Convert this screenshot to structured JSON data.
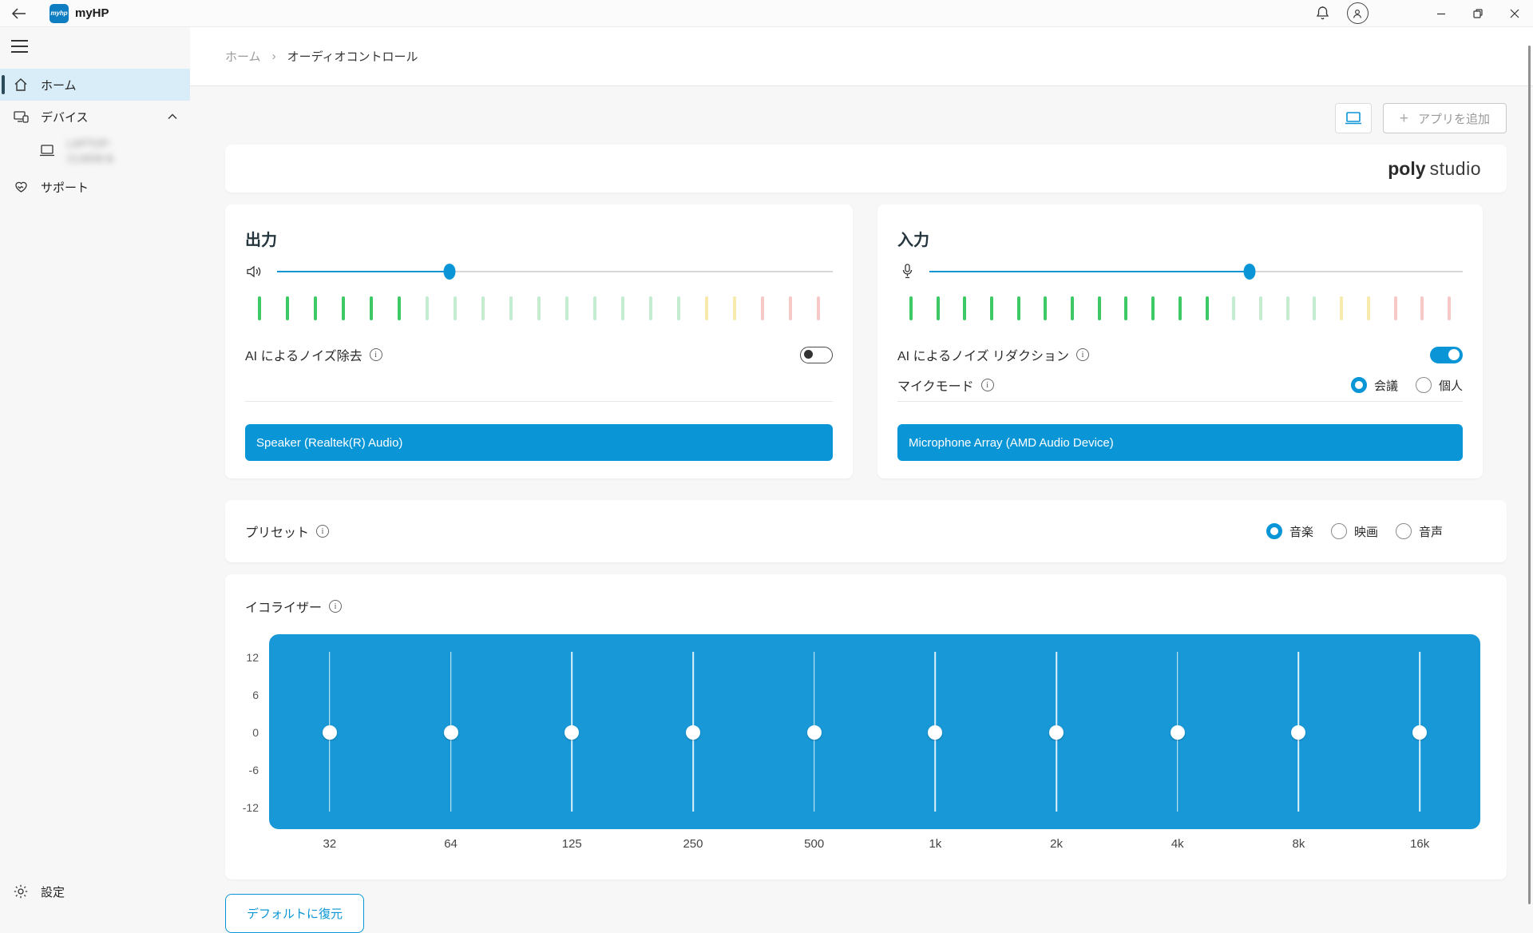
{
  "titlebar": {
    "app_name": "myHP",
    "logo_text": "myhp"
  },
  "sidebar": {
    "items": {
      "home": {
        "label": "ホーム",
        "selected": true
      },
      "devices": {
        "label": "デバイス",
        "expanded": true
      },
      "device": {
        "label": "LAPTOP-CL9058 B",
        "blurred": true
      },
      "support": {
        "label": "サポート"
      }
    },
    "settings_label": "設定"
  },
  "breadcrumb": {
    "home": "ホーム",
    "current": "オーディオコントロール"
  },
  "header_actions": {
    "add_app_label": "アプリを追加"
  },
  "brand": {
    "word1": "poly",
    "word2": "studio"
  },
  "output_card": {
    "title": "出力",
    "volume_percent": 31,
    "meter": [
      "on",
      "on",
      "on",
      "on",
      "on",
      "on",
      "g",
      "g",
      "g",
      "g",
      "g",
      "g",
      "g",
      "g",
      "g",
      "g",
      "y",
      "y",
      "r",
      "r",
      "r"
    ],
    "noise_label": "AI によるノイズ除去",
    "noise_enabled": false,
    "device_button_label": "Speaker (Realtek(R) Audio)"
  },
  "input_card": {
    "title": "入力",
    "volume_percent": 60,
    "meter": [
      "on",
      "on",
      "on",
      "on",
      "on",
      "on",
      "on",
      "on",
      "on",
      "on",
      "on",
      "on",
      "g",
      "g",
      "g",
      "g",
      "y",
      "y",
      "r",
      "r",
      "r"
    ],
    "noise_label": "AI によるノイズ リダクション",
    "noise_enabled": true,
    "mic_mode_label": "マイクモード",
    "mic_modes": [
      {
        "label": "会議",
        "selected": true
      },
      {
        "label": "個人",
        "selected": false
      }
    ],
    "device_button_label": "Microphone Array (AMD Audio Device)"
  },
  "preset": {
    "label": "プリセット",
    "options": [
      {
        "label": "音楽",
        "selected": true
      },
      {
        "label": "映画",
        "selected": false
      },
      {
        "label": "音声",
        "selected": false
      }
    ]
  },
  "equalizer": {
    "title": "イコライザー",
    "type": "slider-bank",
    "y_ticks": [
      12,
      6,
      0,
      -6,
      -12
    ],
    "range": [
      -12,
      12
    ],
    "bands": [
      {
        "freq": "32",
        "gain": 0
      },
      {
        "freq": "64",
        "gain": 0
      },
      {
        "freq": "125",
        "gain": 0
      },
      {
        "freq": "250",
        "gain": 0
      },
      {
        "freq": "500",
        "gain": 0
      },
      {
        "freq": "1k",
        "gain": 0
      },
      {
        "freq": "2k",
        "gain": 0
      },
      {
        "freq": "4k",
        "gain": 0
      },
      {
        "freq": "8k",
        "gain": 0
      },
      {
        "freq": "16k",
        "gain": 0
      }
    ]
  },
  "footer": {
    "restore_label": "デフォルトに復元"
  },
  "colors": {
    "accent": "#0a96d6",
    "eq_panel_blue": "#1898d6",
    "meter_green_active": "#3dc965",
    "meter_green_dim": "#c4ecd0",
    "meter_yellow_dim": "#f8e9ad",
    "meter_red_dim": "#f6c9c7",
    "sidebar_selected_bg": "#d9edf8"
  }
}
